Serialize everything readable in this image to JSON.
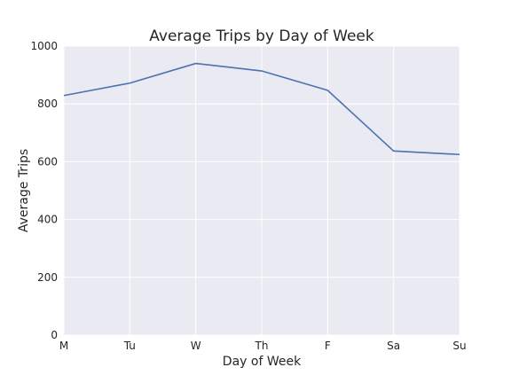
{
  "chart_data": {
    "type": "line",
    "title": "Average Trips by Day of Week",
    "xlabel": "Day of Week",
    "ylabel": "Average Trips",
    "categories": [
      "M",
      "Tu",
      "W",
      "Th",
      "F",
      "Sa",
      "Su"
    ],
    "series": [
      {
        "values": [
          829,
          872,
          940,
          914,
          847,
          637,
          625
        ],
        "color": "#4c72b0"
      }
    ],
    "ylim": [
      0,
      1000
    ],
    "yticks": [
      "0",
      "200",
      "400",
      "600",
      "800",
      "1000"
    ],
    "grid": true,
    "legend": "none",
    "colors": {
      "plot_background": "#eaeaf2",
      "grid": "#ffffff",
      "line": "#4c72b0",
      "text": "#262626"
    }
  }
}
